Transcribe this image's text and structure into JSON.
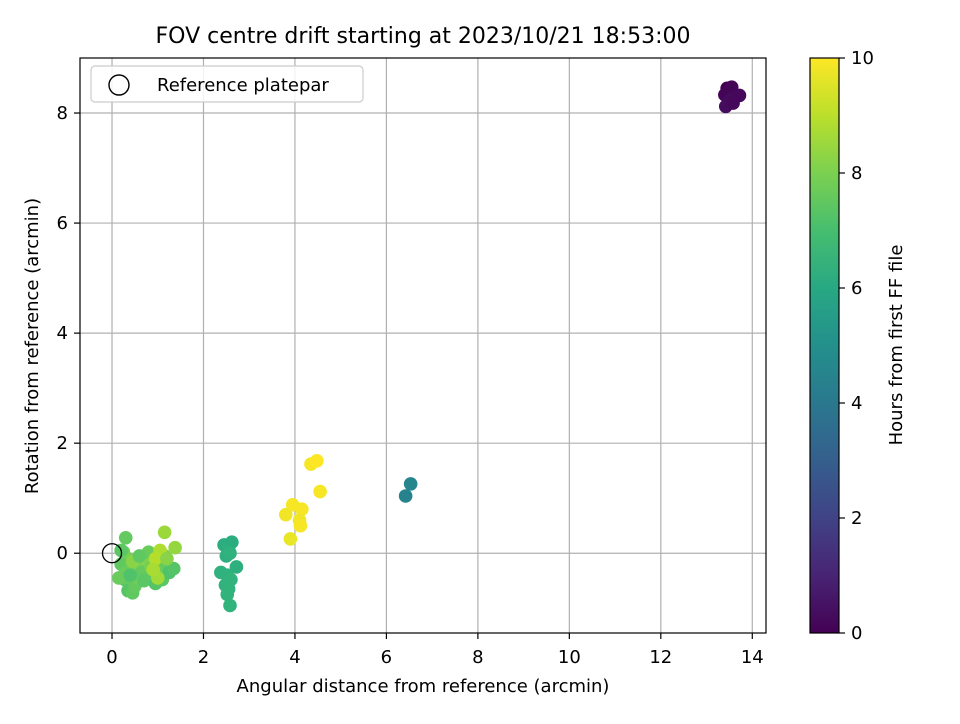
{
  "chart_data": {
    "type": "scatter",
    "title": "FOV centre drift starting at 2023/10/21 18:53:00",
    "xlabel": "Angular distance from reference (arcmin)",
    "ylabel": "Rotation from reference (arcmin)",
    "xlim": [
      -0.7,
      14.3
    ],
    "ylim": [
      -1.45,
      9.0
    ],
    "x_ticks": [
      0,
      2,
      4,
      6,
      8,
      10,
      12,
      14
    ],
    "y_ticks": [
      0,
      2,
      4,
      6,
      8
    ],
    "grid": true,
    "legend": {
      "position": "top-left",
      "entries": [
        "Reference platepar"
      ]
    },
    "reference": {
      "name": "Reference platepar",
      "x": 0,
      "y": 0
    },
    "colorbar": {
      "label": "Hours from first FF file",
      "colormap": "viridis",
      "min": 0,
      "max": 10,
      "ticks": [
        0,
        2,
        4,
        6,
        8,
        10
      ]
    },
    "points": [
      {
        "x": 13.45,
        "y": 8.45,
        "hours": 0.0
      },
      {
        "x": 13.55,
        "y": 8.47,
        "hours": 0.1
      },
      {
        "x": 13.4,
        "y": 8.33,
        "hours": 0.1
      },
      {
        "x": 13.6,
        "y": 8.3,
        "hours": 0.2
      },
      {
        "x": 13.72,
        "y": 8.32,
        "hours": 0.2
      },
      {
        "x": 13.5,
        "y": 8.22,
        "hours": 0.3
      },
      {
        "x": 13.42,
        "y": 8.12,
        "hours": 0.3
      },
      {
        "x": 13.58,
        "y": 8.18,
        "hours": 0.2
      },
      {
        "x": 6.42,
        "y": 1.04,
        "hours": 4.5
      },
      {
        "x": 6.53,
        "y": 1.26,
        "hours": 4.6
      },
      {
        "x": 2.45,
        "y": 0.15,
        "hours": 6.2
      },
      {
        "x": 2.55,
        "y": 0.1,
        "hours": 6.3
      },
      {
        "x": 2.62,
        "y": 0.2,
        "hours": 6.2
      },
      {
        "x": 2.5,
        "y": -0.05,
        "hours": 6.3
      },
      {
        "x": 2.58,
        "y": 0.0,
        "hours": 6.4
      },
      {
        "x": 2.72,
        "y": -0.25,
        "hours": 6.3
      },
      {
        "x": 2.38,
        "y": -0.35,
        "hours": 6.4
      },
      {
        "x": 2.52,
        "y": -0.4,
        "hours": 6.4
      },
      {
        "x": 2.6,
        "y": -0.48,
        "hours": 6.5
      },
      {
        "x": 2.48,
        "y": -0.58,
        "hours": 6.4
      },
      {
        "x": 2.55,
        "y": -0.65,
        "hours": 6.5
      },
      {
        "x": 2.52,
        "y": -0.75,
        "hours": 6.5
      },
      {
        "x": 2.58,
        "y": -0.95,
        "hours": 6.5
      },
      {
        "x": 0.3,
        "y": 0.28,
        "hours": 7.6
      },
      {
        "x": 0.25,
        "y": 0.02,
        "hours": 7.8
      },
      {
        "x": 0.35,
        "y": -0.1,
        "hours": 7.9
      },
      {
        "x": 0.2,
        "y": -0.2,
        "hours": 7.5
      },
      {
        "x": 0.3,
        "y": -0.35,
        "hours": 7.7
      },
      {
        "x": 0.28,
        "y": -0.48,
        "hours": 7.4
      },
      {
        "x": 0.4,
        "y": -0.55,
        "hours": 7.6
      },
      {
        "x": 0.35,
        "y": -0.68,
        "hours": 7.3
      },
      {
        "x": 0.45,
        "y": -0.72,
        "hours": 7.5
      },
      {
        "x": 0.5,
        "y": -0.6,
        "hours": 7.6
      },
      {
        "x": 0.55,
        "y": -0.45,
        "hours": 7.8
      },
      {
        "x": 0.5,
        "y": -0.3,
        "hours": 7.9
      },
      {
        "x": 0.6,
        "y": -0.2,
        "hours": 8.0
      },
      {
        "x": 0.65,
        "y": -0.35,
        "hours": 7.6
      },
      {
        "x": 0.7,
        "y": -0.5,
        "hours": 7.4
      },
      {
        "x": 0.75,
        "y": -0.1,
        "hours": 8.1
      },
      {
        "x": 0.8,
        "y": 0.02,
        "hours": 7.7
      },
      {
        "x": 0.85,
        "y": -0.25,
        "hours": 7.9
      },
      {
        "x": 0.9,
        "y": -0.42,
        "hours": 7.5
      },
      {
        "x": 0.95,
        "y": -0.55,
        "hours": 7.3
      },
      {
        "x": 1.0,
        "y": -0.15,
        "hours": 8.3
      },
      {
        "x": 1.05,
        "y": -0.3,
        "hours": 7.8
      },
      {
        "x": 1.1,
        "y": -0.48,
        "hours": 7.4
      },
      {
        "x": 1.15,
        "y": -0.05,
        "hours": 8.0
      },
      {
        "x": 1.2,
        "y": -0.2,
        "hours": 7.6
      },
      {
        "x": 1.25,
        "y": -0.35,
        "hours": 7.2
      },
      {
        "x": 1.35,
        "y": -0.28,
        "hours": 7.3
      },
      {
        "x": 1.38,
        "y": 0.1,
        "hours": 8.4
      },
      {
        "x": 1.15,
        "y": 0.38,
        "hours": 8.5
      },
      {
        "x": 1.05,
        "y": 0.05,
        "hours": 8.8
      },
      {
        "x": 0.95,
        "y": -0.1,
        "hours": 8.9
      },
      {
        "x": 1.0,
        "y": -0.45,
        "hours": 8.6
      },
      {
        "x": 0.9,
        "y": -0.3,
        "hours": 8.7
      },
      {
        "x": 0.45,
        "y": -0.15,
        "hours": 8.2
      },
      {
        "x": 0.15,
        "y": -0.45,
        "hours": 7.7
      },
      {
        "x": 0.2,
        "y": 0.05,
        "hours": 7.4
      },
      {
        "x": 0.4,
        "y": -0.4,
        "hours": 7.2
      },
      {
        "x": 0.6,
        "y": -0.05,
        "hours": 7.5
      },
      {
        "x": 1.2,
        "y": -0.1,
        "hours": 8.2
      },
      {
        "x": 3.95,
        "y": 0.88,
        "hours": 9.9
      },
      {
        "x": 3.8,
        "y": 0.7,
        "hours": 9.8
      },
      {
        "x": 4.15,
        "y": 0.8,
        "hours": 9.9
      },
      {
        "x": 4.1,
        "y": 0.6,
        "hours": 9.8
      },
      {
        "x": 4.12,
        "y": 0.5,
        "hours": 9.9
      },
      {
        "x": 3.9,
        "y": 0.26,
        "hours": 9.7
      },
      {
        "x": 4.35,
        "y": 1.62,
        "hours": 9.9
      },
      {
        "x": 4.48,
        "y": 1.68,
        "hours": 10.0
      },
      {
        "x": 4.55,
        "y": 1.12,
        "hours": 9.9
      }
    ]
  }
}
